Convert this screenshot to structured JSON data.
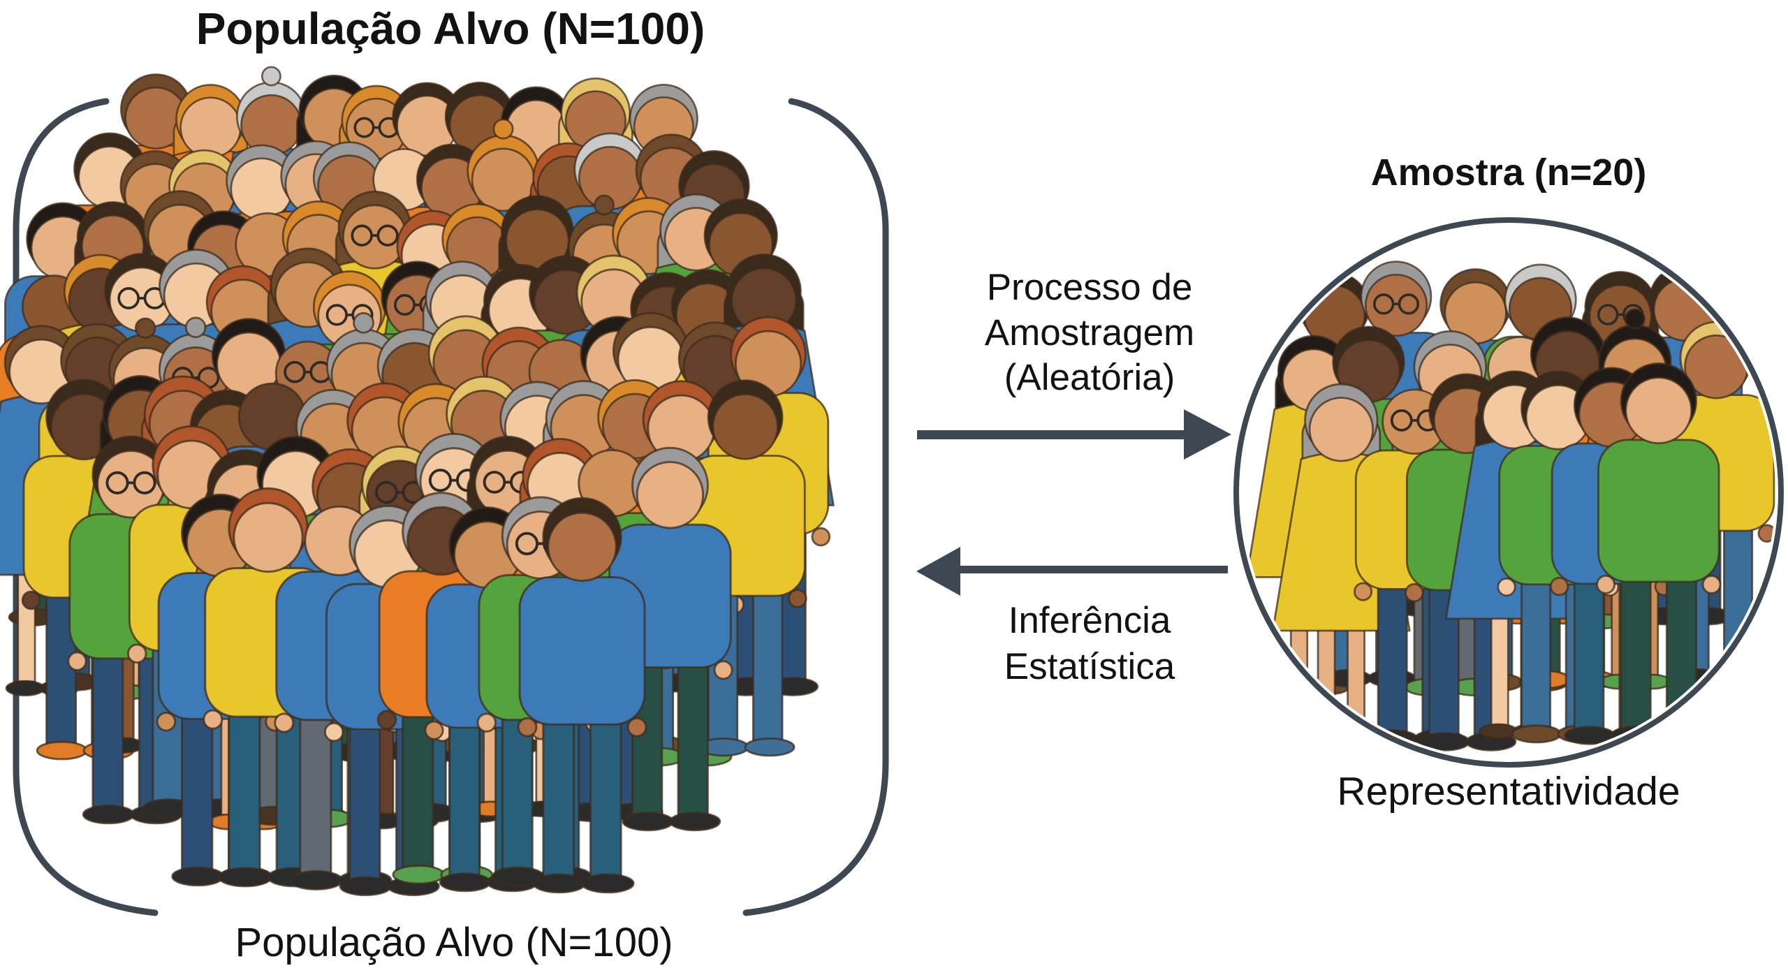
{
  "population": {
    "title": "População Alvo (N=100)",
    "caption": "População Alvo (N=100)",
    "count": 100
  },
  "sample": {
    "title": "Amostra (n=20)",
    "caption": "Representatividade",
    "count": 20
  },
  "process_arrow": {
    "direction": "right",
    "lines": [
      "Processo de",
      "Amostragem",
      "(Aleatória)"
    ]
  },
  "inference_arrow": {
    "direction": "left",
    "lines": [
      "Inferência",
      "Estatística"
    ]
  },
  "colors": {
    "outline": "#3d4852",
    "text": "#121212",
    "figure_stroke": "rgba(62,44,28,0.75)",
    "shirts": [
      "#3d7ab8",
      "#e87d26",
      "#55a33c",
      "#e9c62c"
    ],
    "shirt_weights": [
      0.3,
      0.28,
      0.24,
      0.18
    ],
    "skins": [
      "#f2c9a0",
      "#e7b184",
      "#cf9059",
      "#b07045",
      "#8a5630",
      "#64402a"
    ],
    "hairs": [
      "#3a2a1c",
      "#201b16",
      "#6e4a2a",
      "#9b9b9b",
      "#c9c9c9",
      "#d98a2b",
      "#e4c36a",
      "#b1562a"
    ],
    "pants": [
      "#2c4f75",
      "#3b6d99",
      "#28607c",
      "#616a72",
      "#8a5a2b",
      "#274f46"
    ],
    "shoes": [
      "#2b2b2b",
      "#4a3421",
      "#6d4a2a",
      "#3f6e96",
      "#58a14e",
      "#e07b28"
    ]
  },
  "figures": {
    "seed": 1337,
    "population_count": 100,
    "sample_count": 20
  }
}
